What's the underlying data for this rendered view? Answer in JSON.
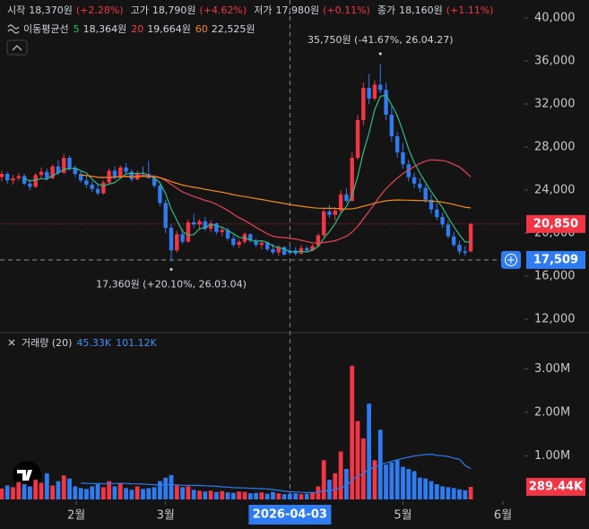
{
  "header": {
    "items": [
      {
        "label": "시작",
        "value": "18,370원",
        "change": "(+2.28%)"
      },
      {
        "label": "고가",
        "value": "18,790원",
        "change": "(+4.62%)"
      },
      {
        "label": "저가",
        "value": "17,980원",
        "change": "(+0.11%)"
      },
      {
        "label": "종가",
        "value": "18,160원",
        "change": "(+1.11%)"
      }
    ]
  },
  "ma_legend": {
    "title": "이동평균선",
    "lines": [
      {
        "period": 5,
        "value": "18,364원",
        "color": "#2ebd85"
      },
      {
        "period": 20,
        "value": "19,664원",
        "color": "#e8435a"
      },
      {
        "period": 60,
        "value": "22,525원",
        "color": "#f5891f"
      }
    ]
  },
  "volume_legend": {
    "title": "거래량 (20)",
    "values": [
      "45.33K",
      "101.12K"
    ]
  },
  "chart_data": {
    "type": "candlestick",
    "open": [
      25200,
      25500,
      24900,
      25100,
      25300,
      24600,
      24300,
      25400,
      25700,
      25100,
      26200,
      25600,
      27000,
      26000,
      25500,
      24900,
      24500,
      24100,
      23700,
      24700,
      25800,
      25200,
      26100,
      25700,
      25000,
      25600,
      25500,
      25100,
      24400,
      22800,
      20500,
      18400,
      19900,
      19200,
      21000,
      20800,
      21100,
      20400,
      20900,
      20100,
      20300,
      19500,
      18900,
      19200,
      19900,
      19300,
      18900,
      19100,
      18500,
      18200,
      18700,
      18370,
      18400,
      18100,
      18600,
      18400,
      18800,
      19800,
      22000,
      21700,
      22100,
      23600,
      23000,
      27000,
      30500,
      33500,
      32500,
      33800,
      33300,
      31000,
      29000,
      27500,
      26400,
      25200,
      24600,
      24200,
      23100,
      22200,
      21500,
      20800,
      19700,
      18900,
      18300,
      18300
    ],
    "high": [
      25800,
      25700,
      25400,
      25600,
      25500,
      25000,
      25600,
      26100,
      26000,
      26400,
      26800,
      27400,
      27200,
      26300,
      25800,
      25300,
      24800,
      24600,
      24900,
      26000,
      26200,
      26300,
      26500,
      25900,
      25800,
      26200,
      26700,
      25400,
      24600,
      23100,
      20800,
      20200,
      20400,
      21300,
      21800,
      21300,
      21500,
      21200,
      21000,
      20600,
      20500,
      19800,
      19400,
      20100,
      20000,
      19500,
      19300,
      19200,
      19000,
      18900,
      18800,
      18790,
      18700,
      18900,
      18800,
      19000,
      20000,
      22300,
      22600,
      22400,
      24000,
      24200,
      27500,
      31000,
      34000,
      34800,
      34200,
      35750,
      34000,
      31800,
      29400,
      28400,
      26800,
      25600,
      25100,
      24500,
      23600,
      22800,
      21900,
      21200,
      20100,
      19300,
      18790,
      20950
    ],
    "low": [
      24800,
      24600,
      24500,
      24900,
      24400,
      24000,
      24200,
      25000,
      24900,
      25000,
      25400,
      25500,
      25800,
      25200,
      24700,
      24200,
      23800,
      23500,
      23600,
      24500,
      25000,
      25100,
      25500,
      24800,
      24900,
      25300,
      25200,
      24200,
      22500,
      20000,
      17360,
      18200,
      19000,
      19100,
      20500,
      20300,
      20200,
      20100,
      19900,
      19700,
      19300,
      18700,
      18600,
      19000,
      19100,
      18700,
      18500,
      18300,
      18000,
      17900,
      17900,
      17980,
      17900,
      18000,
      18200,
      18300,
      18700,
      19600,
      21400,
      21200,
      21900,
      22800,
      22900,
      26800,
      30000,
      32000,
      32300,
      33000,
      30500,
      28500,
      27000,
      26000,
      24800,
      24200,
      23800,
      22800,
      21800,
      21200,
      20500,
      19500,
      18700,
      18000,
      17900,
      18200
    ],
    "close": [
      25500,
      24900,
      25100,
      25300,
      24600,
      24300,
      25400,
      25700,
      25100,
      26200,
      25600,
      27000,
      26000,
      25500,
      24900,
      24500,
      24100,
      23700,
      24700,
      25800,
      25200,
      26100,
      25700,
      25000,
      25600,
      25500,
      25100,
      24400,
      22800,
      20500,
      18400,
      19900,
      19200,
      21000,
      20800,
      21100,
      20400,
      20900,
      20100,
      20300,
      19500,
      18900,
      19200,
      19900,
      19300,
      18900,
      19100,
      18500,
      18200,
      18700,
      18000,
      18160,
      18100,
      18600,
      18400,
      18800,
      19800,
      22000,
      21700,
      22100,
      23600,
      23000,
      27000,
      30500,
      33500,
      32500,
      33800,
      33300,
      31000,
      29000,
      27500,
      26400,
      25200,
      24600,
      24200,
      23100,
      22200,
      21500,
      20800,
      19700,
      18900,
      18300,
      18160,
      20850
    ],
    "volume": [
      250000,
      320000,
      280000,
      400000,
      350000,
      300000,
      450000,
      380000,
      600000,
      320000,
      420000,
      550000,
      480000,
      300000,
      260000,
      240000,
      300000,
      350000,
      280000,
      420000,
      300000,
      380000,
      260000,
      220000,
      300000,
      240000,
      260000,
      280000,
      420000,
      500000,
      560000,
      320000,
      280000,
      300000,
      220000,
      200000,
      180000,
      200000,
      170000,
      190000,
      160000,
      150000,
      180000,
      170000,
      140000,
      150000,
      160000,
      130000,
      170000,
      140000,
      120000,
      130000,
      140000,
      120000,
      130000,
      150000,
      300000,
      900000,
      450000,
      600000,
      1100000,
      700000,
      3070000,
      1800000,
      1400000,
      2200000,
      900000,
      1600000,
      800000,
      850000,
      900000,
      750000,
      700000,
      650000,
      500000,
      480000,
      420000,
      350000,
      300000,
      280000,
      260000,
      230000,
      210000,
      289440
    ],
    "up_color": "#f23645",
    "down_color": "#2f7bf0",
    "ylim": [
      10833,
      41667
    ],
    "yticks": [
      {
        "value": 12000,
        "label": "12,000"
      },
      {
        "value": 16000,
        "label": "16,000"
      },
      {
        "value": 20000,
        "label": "20,000"
      },
      {
        "value": 24000,
        "label": "24,000"
      },
      {
        "value": 28000,
        "label": "28,000"
      },
      {
        "value": 32000,
        "label": "32,000"
      },
      {
        "value": 36000,
        "label": "36,000"
      },
      {
        "value": 40000,
        "label": "40,000"
      }
    ],
    "volume_ylim": [
      0,
      3810000
    ],
    "volume_ticks": [
      {
        "value": 1000000,
        "label": "1.00M"
      },
      {
        "value": 2000000,
        "label": "2.00M"
      },
      {
        "value": 3000000,
        "label": "3.00M"
      }
    ],
    "xlim": [
      -0.3,
      92.5
    ],
    "xticks": [
      {
        "value": 13.2,
        "label": "2월"
      },
      {
        "value": 29,
        "label": "3월"
      },
      {
        "value": 71,
        "label": "5월"
      },
      {
        "value": 88.7,
        "label": "6월"
      }
    ],
    "annotations": {
      "high": "35,750원 (-41.67%, 26.04.27)",
      "low": "17,360원 (+20.10%, 26.03.04)"
    },
    "last_price": {
      "value": 20850,
      "label": "20,850"
    },
    "crosshair": {
      "x": {
        "value": 51,
        "label": "2026-04-03"
      },
      "y": {
        "value": 17509,
        "label": "17,509"
      }
    },
    "last_volume": {
      "value": 289440,
      "label": "289.44K"
    }
  }
}
